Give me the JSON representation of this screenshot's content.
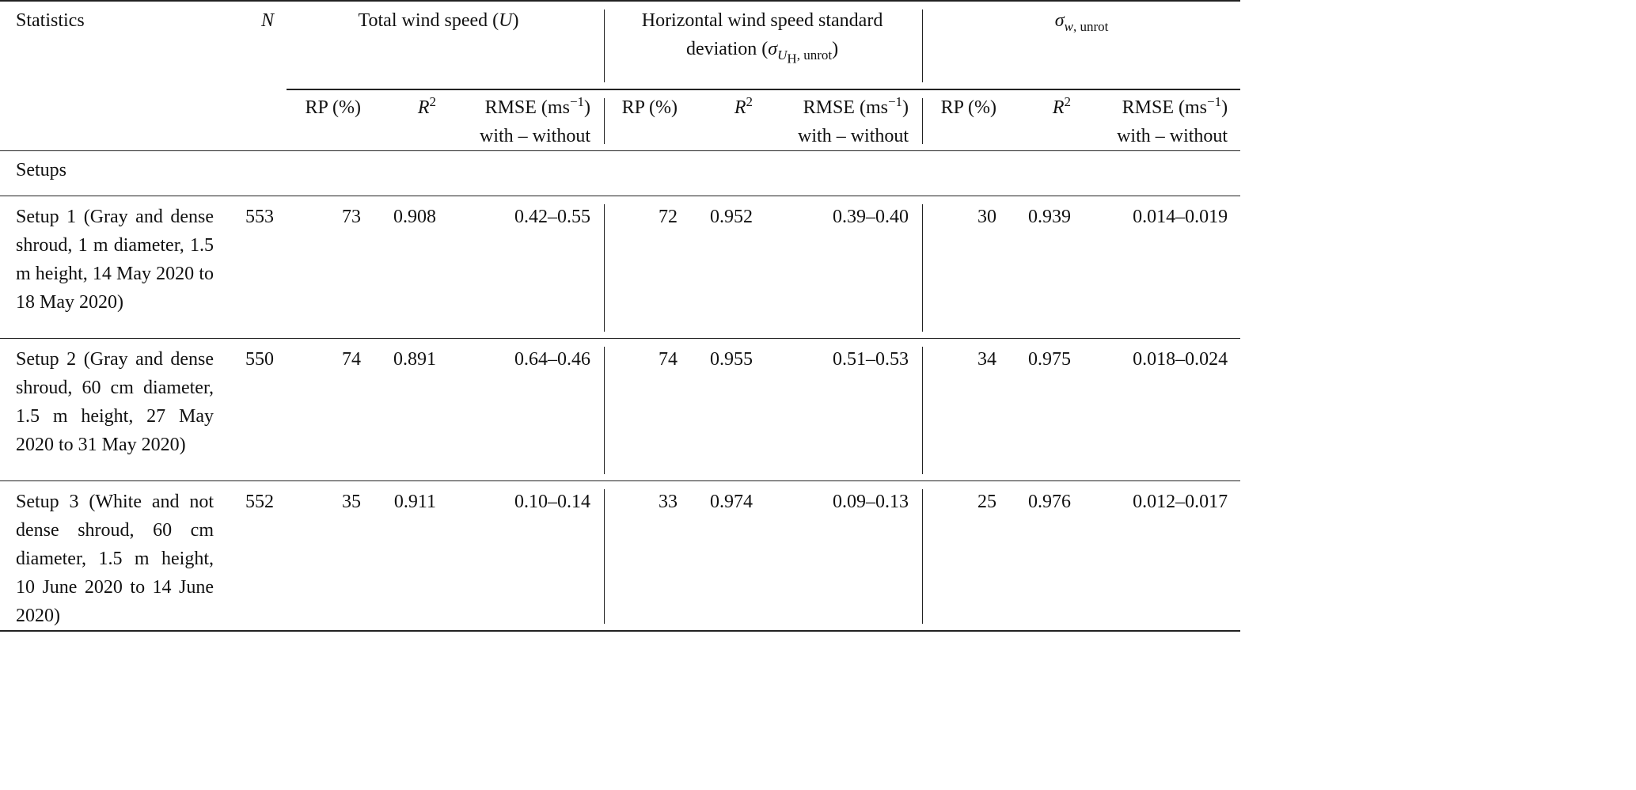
{
  "header": {
    "statistics": "Statistics",
    "n": "N",
    "group1": {
      "text": "Total wind speed (",
      "sym": "U",
      "close": ")"
    },
    "group2": {
      "line1": "Horizontal wind speed standard",
      "line2": "deviation (",
      "sym": "σ",
      "sub_sym": "U",
      "sub_sub": "H",
      "sub_rest": ", unrot",
      "close": ")"
    },
    "group3": {
      "sym": "σ",
      "sub_sym": "w",
      "sub_rest": ", unrot"
    },
    "sub": {
      "rp": "RP (%)",
      "r2": "R",
      "r2_sup": "2",
      "rmse": "RMSE (ms",
      "rmse_sup": "−1",
      "rmse_close": ")",
      "rmse_line2": "with – without"
    }
  },
  "section_label": "Setups",
  "rows": [
    {
      "desc": "Setup 1 (Gray and dense shroud, 1 m diameter, 1.5 m height, 14 May 2020 to 18 May 2020)",
      "n": "553",
      "u": {
        "rp": "73",
        "r2": "0.908",
        "rmse": "0.42–0.55"
      },
      "uh": {
        "rp": "72",
        "r2": "0.952",
        "rmse": "0.39–0.40"
      },
      "w": {
        "rp": "30",
        "r2": "0.939",
        "rmse": "0.014–0.019"
      }
    },
    {
      "desc": "Setup 2 (Gray and dense shroud, 60 cm diameter, 1.5 m height, 27 May 2020 to 31 May 2020)",
      "n": "550",
      "u": {
        "rp": "74",
        "r2": "0.891",
        "rmse": "0.64–0.46"
      },
      "uh": {
        "rp": "74",
        "r2": "0.955",
        "rmse": "0.51–0.53"
      },
      "w": {
        "rp": "34",
        "r2": "0.975",
        "rmse": "0.018–0.024"
      }
    },
    {
      "desc": "Setup 3 (White and not dense shroud, 60 cm diameter, 1.5 m height, 10 June 2020 to 14 June 2020)",
      "n": "552",
      "u": {
        "rp": "35",
        "r2": "0.911",
        "rmse": "0.10–0.14"
      },
      "uh": {
        "rp": "33",
        "r2": "0.974",
        "rmse": "0.09–0.13"
      },
      "w": {
        "rp": "25",
        "r2": "0.976",
        "rmse": "0.012–0.017"
      }
    }
  ]
}
